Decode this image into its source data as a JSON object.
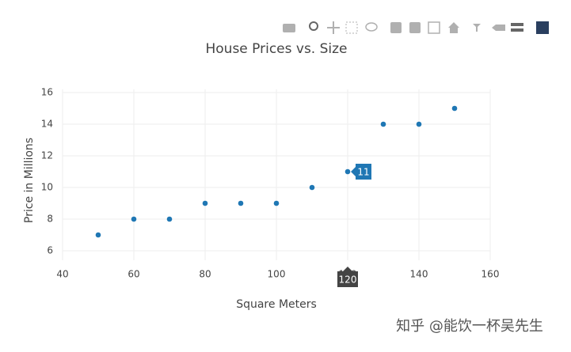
{
  "chart_data": {
    "type": "scatter",
    "title": "House Prices vs. Size",
    "x_label": "Square Meters",
    "y_label": "Price in Millions",
    "x": [
      50,
      60,
      70,
      80,
      90,
      100,
      110,
      120,
      130,
      140,
      150
    ],
    "values": [
      7,
      8,
      8,
      9,
      9,
      9,
      10,
      11,
      14,
      14,
      15
    ],
    "color": "#1f77b4",
    "xlim": [
      40,
      160
    ],
    "xticks": [
      40,
      60,
      80,
      100,
      120,
      140,
      160
    ],
    "ylim": [
      5.4,
      16.2
    ],
    "yticks": [
      6,
      8,
      10,
      12,
      14,
      16
    ],
    "grid": true,
    "hover_index": 7
  },
  "watermark": "知乎 @能饮一杯吴先生"
}
